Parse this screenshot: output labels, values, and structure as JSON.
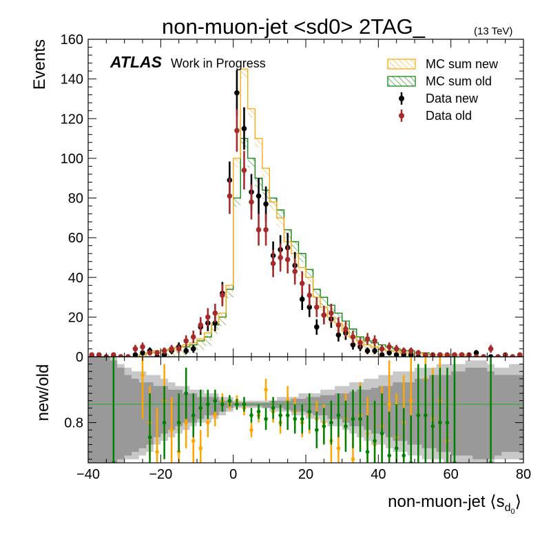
{
  "chart_data": {
    "type": "histogram",
    "title": "non-muon-jet <sd0> 2TAG_",
    "energy_label": "(13 TeV)",
    "experiment_label": "ATLAS",
    "status_label": "Work in Progress",
    "xlabel": "non-muon-jet ⟨s",
    "xlabel_sub": "d",
    "xlabel_subsub": "0",
    "xlabel_close": "⟩",
    "ylabel": "Events",
    "ratio_ylabel": "new/old",
    "xlim": [
      -40,
      80
    ],
    "ylim": [
      0,
      160
    ],
    "ratio_ylim": [
      0.69,
      0.98
    ],
    "ratio_reference": 0.85,
    "x_ticks": [
      "−40",
      "−20",
      "0",
      "20",
      "40",
      "60",
      "80"
    ],
    "y_ticks": [
      "0",
      "20",
      "40",
      "60",
      "80",
      "100",
      "120",
      "140",
      "160"
    ],
    "ratio_y_ticks": [
      "0.8"
    ],
    "bin_width": 2,
    "bin_edges": [
      -40,
      80
    ],
    "legend_position": "top-right",
    "legend": [
      "MC sum new",
      "MC sum old",
      "Data new",
      "Data old"
    ],
    "colors": {
      "mc_new": "#ffa500",
      "mc_old": "#008000",
      "data_new": "#000000",
      "data_old": "#a52a2a",
      "ratio_band_inner": "#999999",
      "ratio_band_outer": "#c8c8c8"
    },
    "series": [
      {
        "name": "MC sum new",
        "style": "hatched-step",
        "values": [
          0,
          0,
          0,
          0,
          0,
          0,
          0,
          1,
          2,
          3,
          3,
          4,
          5,
          6,
          7,
          9,
          12,
          17,
          22,
          36,
          100,
          145,
          125,
          110,
          95,
          78,
          70,
          58,
          52,
          45,
          40,
          30,
          25,
          20,
          17,
          13,
          10,
          8,
          6,
          5,
          4,
          3,
          3,
          2,
          2,
          2,
          1,
          1,
          1,
          1,
          1,
          1,
          0,
          0,
          0,
          0,
          0,
          0,
          0,
          0
        ]
      },
      {
        "name": "MC sum old",
        "style": "hatched-step",
        "values": [
          0,
          0,
          0,
          0,
          0,
          0,
          0,
          1,
          2,
          3,
          3,
          4,
          5,
          5,
          6,
          8,
          10,
          16,
          20,
          34,
          80,
          110,
          100,
          90,
          84,
          80,
          74,
          64,
          58,
          52,
          44,
          34,
          30,
          26,
          22,
          18,
          14,
          10,
          8,
          7,
          6,
          5,
          4,
          3,
          3,
          2,
          2,
          1,
          1,
          1,
          1,
          1,
          0,
          0,
          0,
          0,
          0,
          0,
          0,
          0
        ]
      },
      {
        "name": "Data new",
        "style": "points",
        "values": [
          0,
          0,
          0,
          0,
          0,
          0,
          1,
          2,
          3,
          0,
          1,
          3,
          5,
          3,
          4,
          15,
          17,
          17,
          32,
          89,
          133,
          115,
          83,
          81,
          77,
          51,
          54,
          55,
          46,
          29,
          25,
          15,
          21,
          19,
          11,
          12,
          6,
          5,
          3,
          3,
          1,
          2,
          1,
          1,
          1,
          0,
          0,
          0,
          1,
          0,
          0,
          1,
          0,
          2,
          0,
          0,
          0,
          0,
          0,
          0
        ],
        "errors": [
          0,
          0,
          0,
          0,
          0,
          0,
          1,
          1.4,
          1.7,
          0,
          1,
          1.7,
          2.2,
          1.7,
          2,
          3.9,
          4.1,
          4.1,
          5.7,
          9.4,
          11.5,
          10.7,
          9.1,
          9,
          8.8,
          7.1,
          7.3,
          7.4,
          6.8,
          5.4,
          5,
          3.9,
          4.6,
          4.4,
          3.3,
          3.5,
          2.4,
          2.2,
          1.7,
          1.7,
          1,
          1.4,
          1,
          1,
          1,
          0,
          0,
          0,
          1,
          0,
          0,
          1,
          0,
          1.4,
          0,
          0,
          0,
          0,
          0,
          0
        ]
      },
      {
        "name": "Data old",
        "style": "points",
        "values": [
          1,
          1,
          0,
          1,
          0,
          0,
          4,
          5,
          2,
          2,
          3,
          4,
          4,
          8,
          10,
          16,
          20,
          22,
          31,
          81,
          114,
          94,
          78,
          64,
          64,
          47,
          50,
          49,
          43,
          37,
          31,
          25,
          21,
          22,
          16,
          14,
          10,
          7,
          9,
          8,
          4,
          5,
          4,
          3,
          3,
          2,
          1,
          1,
          1,
          1,
          1,
          1,
          1,
          0,
          0,
          4,
          0,
          1,
          0,
          1
        ],
        "errors": [
          1,
          1,
          0,
          1,
          0,
          0,
          2,
          2.2,
          1.4,
          1.4,
          1.7,
          2,
          2,
          2.8,
          3.2,
          4,
          4.5,
          4.7,
          5.6,
          9,
          10.7,
          9.7,
          8.8,
          8,
          8,
          6.9,
          7.1,
          7,
          6.6,
          6.1,
          5.6,
          5,
          4.6,
          4.7,
          4,
          3.7,
          3.2,
          2.6,
          3,
          2.8,
          2,
          2.2,
          2,
          1.7,
          1.7,
          1.4,
          1,
          1,
          1,
          1,
          1,
          1,
          1,
          0,
          0,
          2,
          0,
          1,
          0,
          1
        ]
      }
    ],
    "ratio_band_outer": {
      "lower": [
        0.69,
        0.69,
        0.69,
        0.69,
        0.69,
        0.7,
        0.7,
        0.71,
        0.72,
        0.74,
        0.75,
        0.76,
        0.77,
        0.78,
        0.79,
        0.8,
        0.8,
        0.81,
        0.82,
        0.83,
        0.84,
        0.84,
        0.84,
        0.84,
        0.84,
        0.83,
        0.83,
        0.83,
        0.82,
        0.82,
        0.81,
        0.81,
        0.8,
        0.79,
        0.79,
        0.78,
        0.77,
        0.76,
        0.75,
        0.74,
        0.74,
        0.73,
        0.72,
        0.72,
        0.71,
        0.71,
        0.7,
        0.7,
        0.7,
        0.69,
        0.69,
        0.69,
        0.69,
        0.69,
        0.69,
        0.69,
        0.7,
        0.7,
        0.7,
        0.7
      ],
      "upper": [
        0.98,
        0.98,
        0.98,
        0.98,
        0.96,
        0.95,
        0.94,
        0.94,
        0.93,
        0.93,
        0.92,
        0.91,
        0.9,
        0.9,
        0.89,
        0.89,
        0.88,
        0.88,
        0.87,
        0.87,
        0.86,
        0.86,
        0.86,
        0.86,
        0.86,
        0.86,
        0.87,
        0.87,
        0.87,
        0.88,
        0.88,
        0.88,
        0.89,
        0.89,
        0.9,
        0.9,
        0.91,
        0.91,
        0.92,
        0.92,
        0.93,
        0.93,
        0.94,
        0.94,
        0.94,
        0.95,
        0.95,
        0.95,
        0.96,
        0.96,
        0.96,
        0.96,
        0.97,
        0.97,
        0.97,
        0.96,
        0.95,
        0.95,
        0.96,
        0.96
      ]
    },
    "ratio_band_inner": {
      "lower": [
        0.69,
        0.69,
        0.69,
        0.69,
        0.7,
        0.71,
        0.72,
        0.73,
        0.74,
        0.76,
        0.77,
        0.78,
        0.79,
        0.8,
        0.8,
        0.81,
        0.82,
        0.82,
        0.83,
        0.84,
        0.845,
        0.845,
        0.845,
        0.845,
        0.84,
        0.84,
        0.84,
        0.835,
        0.83,
        0.83,
        0.825,
        0.82,
        0.82,
        0.81,
        0.81,
        0.8,
        0.79,
        0.79,
        0.78,
        0.77,
        0.77,
        0.76,
        0.75,
        0.75,
        0.74,
        0.74,
        0.73,
        0.73,
        0.72,
        0.72,
        0.71,
        0.71,
        0.71,
        0.7,
        0.7,
        0.7,
        0.71,
        0.72,
        0.72,
        0.72
      ],
      "upper": [
        0.98,
        0.98,
        0.98,
        0.97,
        0.95,
        0.93,
        0.92,
        0.91,
        0.91,
        0.9,
        0.9,
        0.89,
        0.89,
        0.88,
        0.88,
        0.87,
        0.87,
        0.87,
        0.86,
        0.86,
        0.855,
        0.855,
        0.855,
        0.855,
        0.855,
        0.86,
        0.86,
        0.86,
        0.865,
        0.865,
        0.87,
        0.87,
        0.875,
        0.875,
        0.88,
        0.88,
        0.885,
        0.89,
        0.89,
        0.895,
        0.9,
        0.9,
        0.91,
        0.91,
        0.91,
        0.92,
        0.92,
        0.93,
        0.93,
        0.93,
        0.94,
        0.94,
        0.95,
        0.95,
        0.95,
        0.94,
        0.93,
        0.93,
        0.93,
        0.93
      ]
    },
    "ratio_points_orange": {
      "x": [
        -25,
        -23,
        -21,
        -19,
        -17,
        -15,
        -13,
        -11,
        -9,
        -7,
        -5,
        -3,
        -1,
        1,
        3,
        5,
        7,
        9,
        11,
        13,
        15,
        17,
        19,
        21,
        23,
        25,
        27,
        29,
        31,
        33,
        35,
        37,
        39,
        41,
        43,
        45,
        47,
        49,
        51,
        53,
        55,
        57,
        59
      ],
      "y": [
        0.93,
        0.8,
        0.72,
        0.86,
        0.78,
        0.72,
        0.8,
        0.75,
        0.73,
        0.8,
        0.82,
        0.86,
        0.85,
        0.86,
        0.84,
        0.78,
        0.82,
        0.89,
        0.83,
        0.8,
        0.86,
        0.83,
        0.8,
        0.82,
        0.81,
        0.8,
        0.75,
        0.73,
        0.81,
        0.7,
        0.82,
        0.77,
        0.74,
        0.79,
        0.85,
        0.76,
        0.8,
        0.86,
        0.82,
        0.92,
        0.81,
        0.86,
        0.75
      ],
      "err": [
        0.12,
        0.1,
        0.12,
        0.1,
        0.09,
        0.09,
        0.07,
        0.06,
        0.05,
        0.04,
        0.03,
        0.02,
        0.015,
        0.015,
        0.02,
        0.02,
        0.02,
        0.03,
        0.03,
        0.03,
        0.04,
        0.04,
        0.04,
        0.05,
        0.05,
        0.05,
        0.06,
        0.06,
        0.07,
        0.08,
        0.09,
        0.1,
        0.11,
        0.11,
        0.12,
        0.12,
        0.13,
        0.13,
        0.14,
        0.14,
        0.14,
        0.15,
        0.15
      ]
    },
    "ratio_points_green": {
      "x": [
        -33,
        -23,
        -19,
        -15,
        -13,
        -11,
        -9,
        -7,
        -5,
        -3,
        -1,
        1,
        3,
        5,
        7,
        9,
        11,
        13,
        15,
        17,
        19,
        21,
        23,
        25,
        27,
        29,
        31,
        33,
        35,
        37,
        39,
        41,
        43,
        45,
        47,
        49,
        51,
        53,
        55,
        57,
        59,
        61,
        71
      ],
      "y": [
        0.69,
        0.76,
        0.8,
        0.8,
        0.88,
        0.82,
        0.84,
        0.85,
        0.86,
        0.85,
        0.86,
        0.85,
        0.85,
        0.82,
        0.83,
        0.81,
        0.84,
        0.82,
        0.82,
        0.81,
        0.81,
        0.83,
        0.78,
        0.79,
        0.8,
        0.82,
        0.79,
        0.81,
        0.81,
        0.72,
        0.75,
        0.77,
        0.71,
        0.73,
        0.71,
        0.69,
        0.82,
        0.82,
        0.79,
        0.8,
        0.8,
        0.69,
        0.69
      ],
      "err": [
        0.29,
        0.12,
        0.1,
        0.08,
        0.07,
        0.06,
        0.05,
        0.04,
        0.03,
        0.02,
        0.015,
        0.015,
        0.02,
        0.02,
        0.02,
        0.03,
        0.03,
        0.03,
        0.04,
        0.04,
        0.04,
        0.05,
        0.05,
        0.05,
        0.06,
        0.06,
        0.07,
        0.08,
        0.09,
        0.1,
        0.11,
        0.11,
        0.12,
        0.12,
        0.13,
        0.13,
        0.14,
        0.14,
        0.14,
        0.15,
        0.15,
        0.29,
        0.29
      ]
    }
  }
}
